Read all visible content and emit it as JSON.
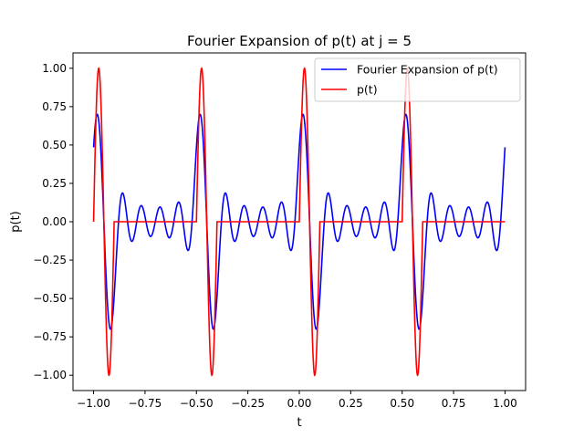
{
  "chart_data": {
    "type": "line",
    "title": "Fourier Expansion of p(t) at j = 5",
    "xlabel": "t",
    "ylabel": "p(t)",
    "xlim": [
      -1.1,
      1.1
    ],
    "ylim": [
      -1.1,
      1.1
    ],
    "xticks": [
      -1.0,
      -0.75,
      -0.5,
      -0.25,
      0.0,
      0.25,
      0.5,
      0.75,
      1.0
    ],
    "xtick_labels": [
      "−1.00",
      "−0.75",
      "−0.50",
      "−0.25",
      "0.00",
      "0.25",
      "0.50",
      "0.75",
      "1.00"
    ],
    "yticks": [
      -1.0,
      -0.75,
      -0.5,
      -0.25,
      0.0,
      0.25,
      0.5,
      0.75,
      1.0
    ],
    "ytick_labels": [
      "−1.00",
      "−0.75",
      "−0.50",
      "−0.25",
      "0.00",
      "0.25",
      "0.50",
      "0.75",
      "1.00"
    ],
    "grid": false,
    "legend_position": "top-right",
    "period": 0.5,
    "pulse_width": 0.1,
    "fourier_terms": 5,
    "series": [
      {
        "name": "Fourier Expansion of p(t)",
        "color": "#0000ff",
        "kind": "fourier"
      },
      {
        "name": "p(t)",
        "color": "#ff0000",
        "kind": "pulse"
      }
    ]
  }
}
